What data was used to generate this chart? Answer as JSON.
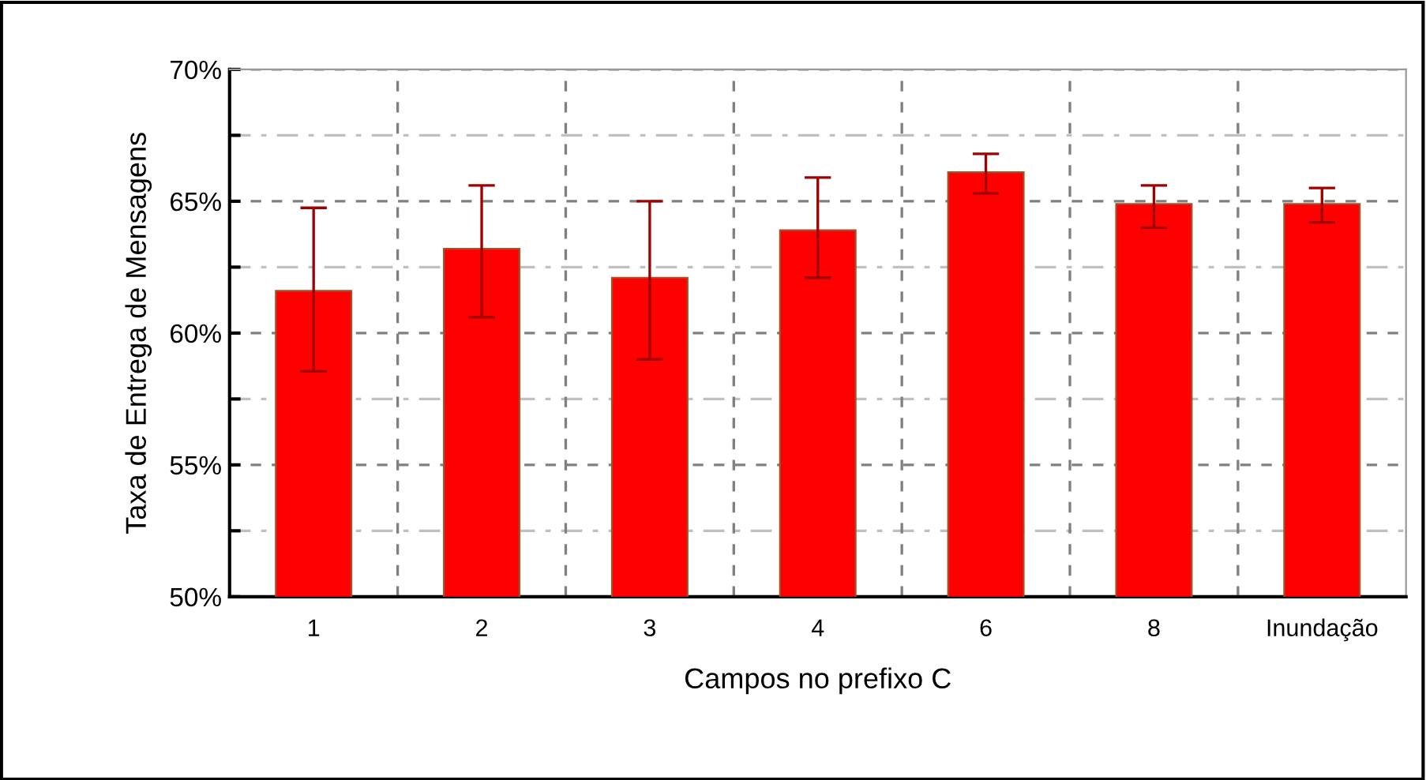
{
  "chart_data": {
    "type": "bar",
    "xlabel": "Campos no prefixo C",
    "ylabel": "Taxa de Entrega de Mensagens",
    "categories": [
      "1",
      "2",
      "3",
      "4",
      "6",
      "8",
      "Inundação"
    ],
    "values": [
      61.6,
      63.2,
      62.1,
      63.9,
      66.1,
      64.9,
      64.9
    ],
    "errors": [
      [
        58.55,
        64.75
      ],
      [
        60.6,
        65.6
      ],
      [
        59.0,
        65.0
      ],
      [
        62.1,
        65.9
      ],
      [
        65.3,
        66.8
      ],
      [
        64.0,
        65.6
      ],
      [
        64.2,
        65.5
      ]
    ],
    "color": "#ff0000",
    "ylim": [
      50,
      70
    ],
    "yticks": [
      {
        "value": 50,
        "label": "50%"
      },
      {
        "value": 52.5,
        "label": null
      },
      {
        "value": 55,
        "label": "55%"
      },
      {
        "value": 57.5,
        "label": null
      },
      {
        "value": 60,
        "label": "60%"
      },
      {
        "value": 62.5,
        "label": null
      },
      {
        "value": 65,
        "label": "65%"
      },
      {
        "value": 67.5,
        "label": null
      },
      {
        "value": 70,
        "label": "70%"
      }
    ],
    "grid": true
  }
}
